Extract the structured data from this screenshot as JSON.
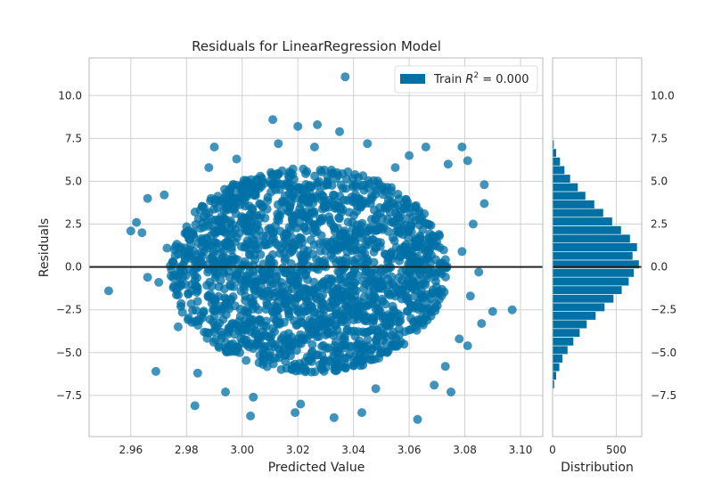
{
  "colors": {
    "series": "#0070a5",
    "zero_line": "#222222",
    "grid": "#d0d0d0",
    "frame": "#b8b8b8",
    "background": "#ffffff"
  },
  "chart_data": [
    {
      "type": "scatter",
      "title": "Residuals for LinearRegression Model",
      "xlabel": "Predicted Value",
      "ylabel": "Residuals",
      "xlim": [
        2.945,
        3.108
      ],
      "ylim": [
        -9.9,
        12.2
      ],
      "xticks": [
        2.96,
        2.98,
        3.0,
        3.02,
        3.04,
        3.06,
        3.08,
        3.1
      ],
      "xtick_labels": [
        "2.96",
        "2.98",
        "3.00",
        "3.02",
        "3.04",
        "3.06",
        "3.08",
        "3.10"
      ],
      "yticks": [
        -7.5,
        -5.0,
        -2.5,
        0.0,
        2.5,
        5.0,
        7.5,
        10.0
      ],
      "ytick_labels": [
        "−7.5",
        "−5.0",
        "−2.5",
        "0.0",
        "2.5",
        "5.0",
        "7.5",
        "10.0"
      ],
      "grid": true,
      "legend_position": "top-right",
      "legend": {
        "prefix": "Train ",
        "symbol": "R",
        "superscript": "2",
        "suffix": " = 0.000"
      },
      "zero_line": 0.0,
      "series": [
        {
          "name": "Train",
          "points": [
            [
              3.037,
              11.1
            ],
            [
              3.011,
              8.6
            ],
            [
              3.02,
              8.2
            ],
            [
              3.035,
              7.9
            ],
            [
              3.027,
              8.3
            ],
            [
              2.99,
              7.0
            ],
            [
              3.079,
              7.0
            ],
            [
              2.952,
              -1.4
            ],
            [
              3.097,
              -2.5
            ],
            [
              3.086,
              -3.3
            ],
            [
              3.09,
              -2.6
            ],
            [
              2.96,
              2.1
            ],
            [
              2.962,
              2.6
            ],
            [
              2.966,
              4.0
            ],
            [
              2.972,
              4.2
            ],
            [
              2.964,
              2.0
            ],
            [
              3.081,
              6.2
            ],
            [
              3.087,
              4.8
            ],
            [
              3.087,
              3.7
            ],
            [
              3.082,
              -1.7
            ],
            [
              3.081,
              -4.6
            ],
            [
              3.073,
              -5.8
            ],
            [
              2.969,
              -6.1
            ],
            [
              2.983,
              -8.1
            ],
            [
              3.003,
              -8.7
            ],
            [
              3.019,
              -8.5
            ],
            [
              3.033,
              -8.8
            ],
            [
              3.063,
              -8.9
            ],
            [
              3.075,
              -7.3
            ],
            [
              2.994,
              -7.3
            ],
            [
              3.055,
              5.8
            ],
            [
              3.074,
              6.0
            ],
            [
              2.977,
              -3.5
            ],
            [
              2.973,
              1.1
            ],
            [
              3.083,
              2.5
            ],
            [
              3.085,
              -0.3
            ],
            [
              3.079,
              0.9
            ],
            [
              2.966,
              -0.6
            ],
            [
              2.97,
              -0.9
            ],
            [
              2.975,
              0.3
            ],
            [
              3.004,
              -7.6
            ],
            [
              3.048,
              -7.1
            ],
            [
              3.06,
              6.5
            ],
            [
              3.066,
              7.0
            ],
            [
              2.984,
              -6.2
            ],
            [
              2.998,
              6.3
            ],
            [
              3.045,
              7.2
            ],
            [
              3.026,
              7.0
            ],
            [
              3.021,
              -8.0
            ],
            [
              3.043,
              -8.5
            ],
            [
              3.013,
              7.2
            ],
            [
              3.078,
              -4.2
            ],
            [
              2.988,
              5.8
            ],
            [
              3.069,
              -6.9
            ]
          ]
        }
      ],
      "fill_ellipse": {
        "cx": 3.024,
        "cy": -0.2,
        "rx": 0.05,
        "ry": 6.0,
        "n_points": 1900
      }
    },
    {
      "type": "histogram",
      "xlabel": "Distribution",
      "xlim": [
        0,
        700
      ],
      "xticks": [
        0,
        500
      ],
      "xtick_labels": [
        "0",
        "500"
      ],
      "yticks": [
        -7.5,
        -5.0,
        -2.5,
        0.0,
        2.5,
        5.0,
        7.5,
        10.0
      ],
      "ytick_labels": [
        "−7.5",
        "−5.0",
        "−2.5",
        "0.0",
        "2.5",
        "5.0",
        "7.5",
        "10.0"
      ],
      "ylim": [
        -9.9,
        12.2
      ],
      "bin_edges": [
        -7.6,
        -7.1,
        -6.6,
        -6.1,
        -5.6,
        -5.1,
        -4.6,
        -4.1,
        -3.6,
        -3.1,
        -2.6,
        -2.1,
        -1.6,
        -1.1,
        -0.6,
        -0.1,
        0.4,
        0.9,
        1.4,
        1.9,
        2.4,
        2.9,
        3.4,
        3.9,
        4.4,
        4.9,
        5.4,
        5.9,
        6.4,
        6.9,
        7.4
      ],
      "counts": [
        5,
        15,
        30,
        55,
        80,
        120,
        165,
        215,
        270,
        340,
        410,
        480,
        545,
        600,
        640,
        680,
        630,
        665,
        610,
        540,
        470,
        400,
        330,
        260,
        200,
        140,
        95,
        60,
        30,
        12
      ]
    }
  ]
}
